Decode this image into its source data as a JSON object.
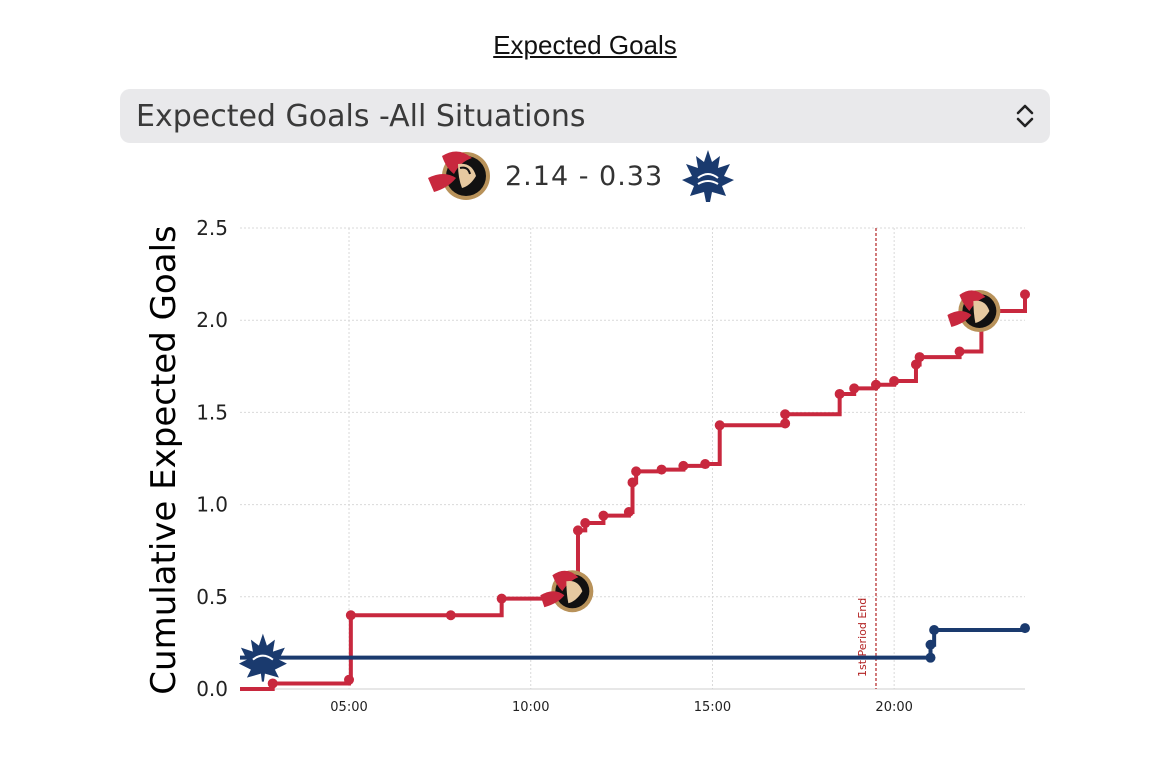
{
  "page": {
    "title": "Expected Goals",
    "selector": {
      "selected": "Expected Goals -All Situations",
      "icon": "chevron-up-down-icon"
    },
    "score": {
      "text": "2.14 - 0.33",
      "home_logo": "ottawa-senators-logo",
      "away_logo": "toronto-maple-leafs-logo"
    }
  },
  "colors": {
    "senators": "#c8283e",
    "leafs": "#1a3a6e",
    "period_line": "#b22222",
    "grid": "#d9d9d9"
  },
  "chart_data": {
    "type": "line",
    "step": true,
    "xlabel": "",
    "ylabel": "Cumulative Expected Goals",
    "x_unit": "minutes",
    "xlim": [
      2.0,
      23.6
    ],
    "ylim": [
      0,
      2.5
    ],
    "yticks": [
      "0.0",
      "0.5",
      "1.0",
      "1.5",
      "2.0",
      "2.5"
    ],
    "xticks": [
      "05:00",
      "10:00",
      "15:00",
      "20:00"
    ],
    "xtick_values": [
      5,
      10,
      15,
      20
    ],
    "grid": true,
    "annotations": [
      {
        "text": "1st Period End",
        "x": 19.5
      }
    ],
    "series": [
      {
        "team": "senators",
        "color": "#c8283e",
        "points": [
          [
            2.0,
            0.0
          ],
          [
            2.9,
            0.03
          ],
          [
            5.0,
            0.05
          ],
          [
            5.05,
            0.4
          ],
          [
            7.8,
            0.4
          ],
          [
            9.2,
            0.49
          ],
          [
            11.2,
            0.53
          ],
          [
            11.3,
            0.86
          ],
          [
            11.5,
            0.9
          ],
          [
            12.0,
            0.94
          ],
          [
            12.7,
            0.96
          ],
          [
            12.8,
            1.12
          ],
          [
            12.9,
            1.18
          ],
          [
            13.6,
            1.19
          ],
          [
            14.2,
            1.21
          ],
          [
            14.8,
            1.22
          ],
          [
            15.2,
            1.43
          ],
          [
            17.0,
            1.44
          ],
          [
            17.0,
            1.49
          ],
          [
            18.5,
            1.6
          ],
          [
            18.9,
            1.63
          ],
          [
            19.5,
            1.65
          ],
          [
            20.0,
            1.67
          ],
          [
            20.6,
            1.76
          ],
          [
            20.7,
            1.8
          ],
          [
            21.8,
            1.83
          ],
          [
            22.4,
            2.05
          ],
          [
            23.6,
            2.14
          ]
        ],
        "goal_markers": [
          [
            11.2,
            0.53
          ],
          [
            22.4,
            2.05
          ]
        ]
      },
      {
        "team": "leafs",
        "color": "#1a3a6e",
        "points": [
          [
            2.0,
            0.17
          ],
          [
            21.0,
            0.17
          ],
          [
            21.0,
            0.24
          ],
          [
            21.1,
            0.32
          ],
          [
            23.6,
            0.33
          ]
        ],
        "goal_markers": [
          [
            2.3,
            0.17
          ]
        ]
      }
    ]
  }
}
